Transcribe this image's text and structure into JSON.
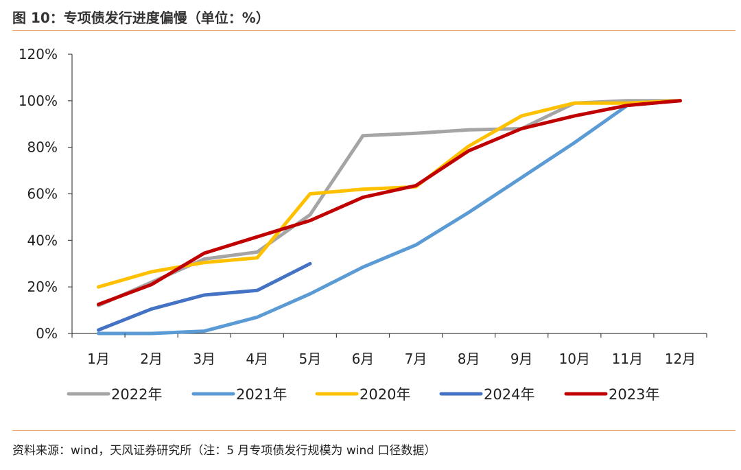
{
  "header": {
    "title": "图 10：专项债发行进度偏慢（单位：%）"
  },
  "footer": {
    "source": "资料来源：wind，天风证券研究所（注：5 月专项债发行规模为 wind 口径数据）"
  },
  "chart_data": {
    "type": "line",
    "categories": [
      "1月",
      "2月",
      "3月",
      "4月",
      "5月",
      "6月",
      "7月",
      "8月",
      "9月",
      "10月",
      "11月",
      "12月"
    ],
    "y_ticks": [
      "0%",
      "20%",
      "40%",
      "60%",
      "80%",
      "100%",
      "120%"
    ],
    "ylim": [
      0,
      120
    ],
    "grid": false,
    "legend_position": "bottom",
    "series": [
      {
        "name": "2022年",
        "color": "#a5a5a5",
        "values": [
          12,
          22,
          32,
          35,
          51,
          85,
          86,
          87.5,
          88,
          99,
          100,
          100
        ]
      },
      {
        "name": "2021年",
        "color": "#5b9bd5",
        "values": [
          0,
          0,
          1,
          7,
          17,
          28.5,
          38,
          52,
          67,
          82,
          98,
          100
        ]
      },
      {
        "name": "2020年",
        "color": "#ffc000",
        "values": [
          20,
          26.5,
          30.5,
          32.5,
          60,
          62,
          63,
          80.5,
          93.5,
          99,
          99,
          100
        ]
      },
      {
        "name": "2024年",
        "color": "#4472c4",
        "values": [
          1.5,
          10.5,
          16.5,
          18.5,
          30,
          null,
          null,
          null,
          null,
          null,
          null,
          null
        ]
      },
      {
        "name": "2023年",
        "color": "#c00000",
        "values": [
          12.5,
          21,
          34.5,
          41.5,
          48.5,
          58.5,
          63.5,
          78.5,
          88,
          93.5,
          98,
          100
        ]
      }
    ]
  }
}
